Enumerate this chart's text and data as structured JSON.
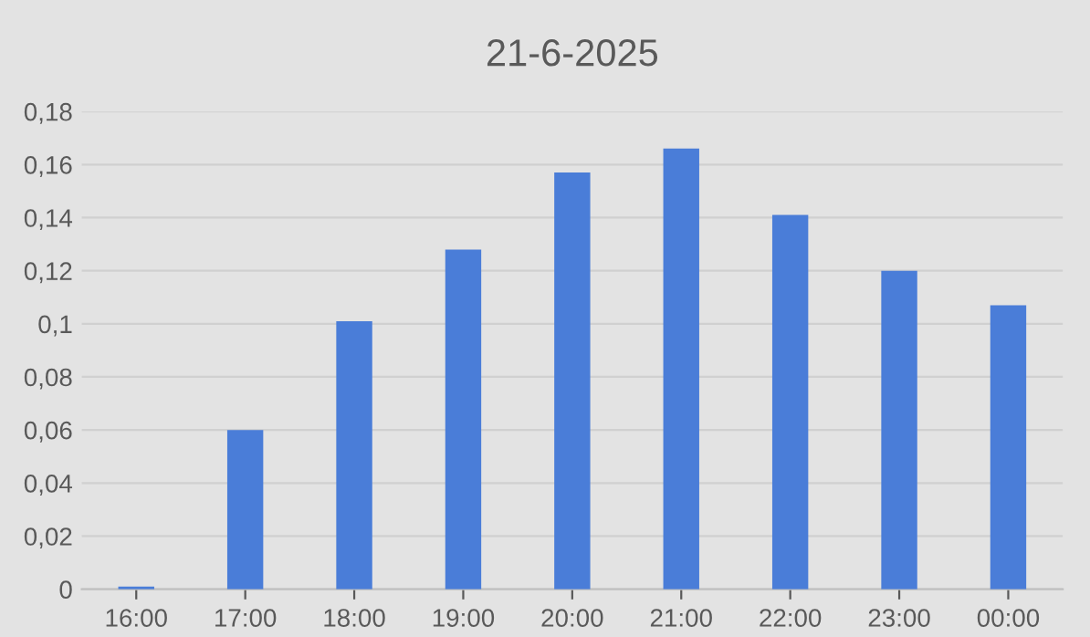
{
  "chart_data": {
    "type": "bar",
    "title": "21-6-2025",
    "categories": [
      "16:00",
      "17:00",
      "18:00",
      "19:00",
      "20:00",
      "21:00",
      "22:00",
      "23:00",
      "00:00"
    ],
    "values": [
      0.001,
      0.06,
      0.101,
      0.128,
      0.157,
      0.166,
      0.141,
      0.12,
      0.107
    ],
    "color": "#4a7dd8",
    "ylim": [
      0,
      0.18
    ],
    "yticks": [
      0,
      {
        "value": 0.02,
        "label": "0,02"
      },
      {
        "value": 0.04,
        "label": "0,04"
      },
      {
        "value": 0.06,
        "label": "0,06"
      },
      {
        "value": 0.08,
        "label": "0,08"
      },
      {
        "value": 0.1,
        "label": "0,1"
      },
      {
        "value": 0.12,
        "label": "0,12"
      },
      {
        "value": 0.14,
        "label": "0,14"
      },
      {
        "value": 0.16,
        "label": "0,16"
      },
      {
        "value": 0.18,
        "label": "0,18"
      }
    ],
    "grid": "y",
    "legend": false
  }
}
